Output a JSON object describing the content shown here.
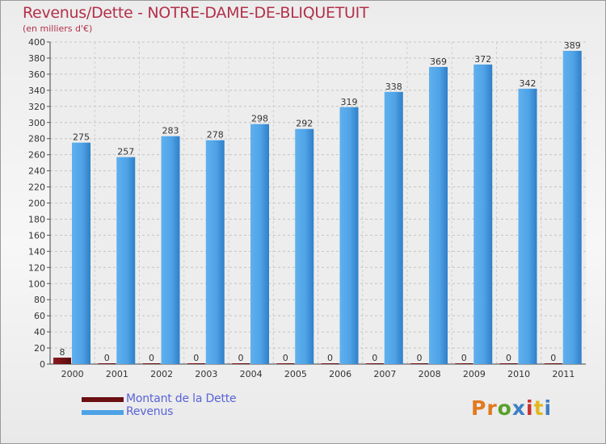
{
  "chart_data": {
    "type": "bar",
    "title": "Revenus/Dette - NOTRE-DAME-DE-BLIQUETUIT",
    "subtitle": "(en milliers d'€)",
    "categories": [
      "2000",
      "2001",
      "2002",
      "2003",
      "2004",
      "2005",
      "2006",
      "2007",
      "2008",
      "2009",
      "2010",
      "2011"
    ],
    "series": [
      {
        "name": "Montant de la Dette",
        "values": [
          8,
          0,
          0,
          0,
          0,
          0,
          0,
          0,
          0,
          0,
          0,
          0
        ],
        "color": "#6b0f12"
      },
      {
        "name": "Revenus",
        "values": [
          275,
          257,
          283,
          278,
          298,
          292,
          319,
          338,
          369,
          372,
          342,
          389
        ],
        "color": "#4ea3e6"
      }
    ],
    "ylim": [
      0,
      400
    ],
    "yticks": [
      0,
      20,
      40,
      60,
      80,
      100,
      120,
      140,
      160,
      180,
      200,
      220,
      240,
      260,
      280,
      300,
      320,
      340,
      360,
      380,
      400
    ],
    "grid": true,
    "legend_position": "bottom-left"
  },
  "logo": {
    "text": "Proxiti",
    "colors": [
      "#e07a1f",
      "#e07a1f",
      "#5aa02c",
      "#3d7fc4",
      "#c8322a",
      "#e0b91f",
      "#3d7fc4"
    ]
  }
}
